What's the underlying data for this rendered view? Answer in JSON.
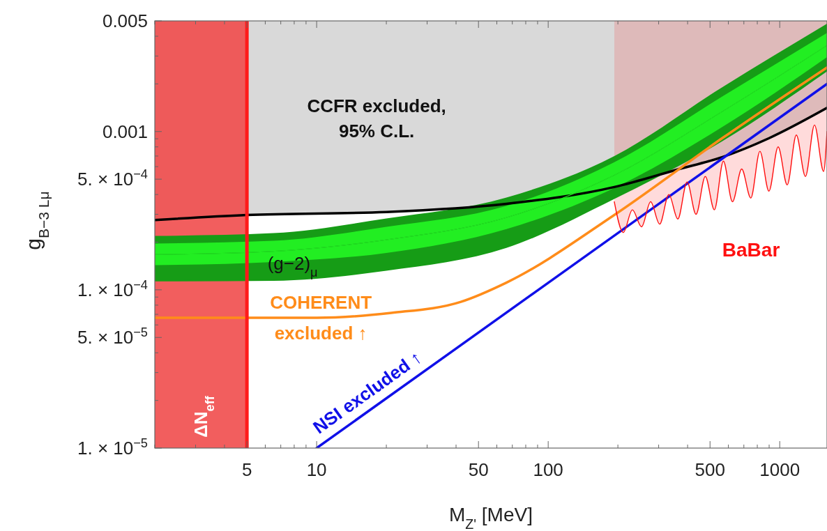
{
  "chart_data": {
    "type": "line",
    "xlabel": "M$_{Z'}$ [MeV]",
    "ylabel": "g$_{B−3 Lμ}$",
    "log": "xy",
    "xlim": [
      2,
      1600
    ],
    "ylim": [
      1e-05,
      0.005
    ],
    "xticks": [
      {
        "value": 2,
        "label": null
      },
      {
        "value": 3,
        "label": null
      },
      {
        "value": 4,
        "label": null
      },
      5,
      {
        "value": 6,
        "label": null
      },
      {
        "value": 7,
        "label": null
      },
      {
        "value": 8,
        "label": null
      },
      {
        "value": 9,
        "label": null
      },
      10,
      {
        "value": 20,
        "label": null
      },
      {
        "value": 30,
        "label": null
      },
      {
        "value": 40,
        "label": null
      },
      50,
      {
        "value": 60,
        "label": null
      },
      {
        "value": 70,
        "label": null
      },
      {
        "value": 80,
        "label": null
      },
      {
        "value": 90,
        "label": null
      },
      100,
      {
        "value": 200,
        "label": null
      },
      {
        "value": 300,
        "label": null
      },
      {
        "value": 400,
        "label": null
      },
      500,
      {
        "value": 600,
        "label": null
      },
      {
        "value": 700,
        "label": null
      },
      {
        "value": 800,
        "label": null
      },
      {
        "value": 900,
        "label": null
      },
      1000
    ],
    "yticks": [
      {
        "value": 1e-05,
        "label": "1. × 10$^{−5}$"
      },
      {
        "value": 2e-05,
        "label": null
      },
      {
        "value": 3e-05,
        "label": null
      },
      {
        "value": 4e-05,
        "label": null
      },
      {
        "value": 5e-05,
        "label": "5. × 10$^{−5}$"
      },
      {
        "value": 6e-05,
        "label": null
      },
      {
        "value": 7e-05,
        "label": null
      },
      {
        "value": 8e-05,
        "label": null
      },
      {
        "value": 9e-05,
        "label": null
      },
      {
        "value": 0.0001,
        "label": "1. × 10$^{−4}$"
      },
      {
        "value": 0.0002,
        "label": null
      },
      {
        "value": 0.0003,
        "label": null
      },
      {
        "value": 0.0004,
        "label": null
      },
      {
        "value": 0.0005,
        "label": "5. × 10$^{−4}$"
      },
      {
        "value": 0.0006,
        "label": null
      },
      {
        "value": 0.0007,
        "label": null
      },
      {
        "value": 0.0008,
        "label": null
      },
      {
        "value": 0.0009,
        "label": null
      },
      0.001,
      {
        "value": 0.002,
        "label": null
      },
      {
        "value": 0.003,
        "label": null
      },
      {
        "value": 0.004,
        "label": null
      },
      0.005
    ],
    "series": [
      {
        "color": "#000000",
        "x": [
          2,
          5,
          20,
          66,
          193,
          360,
          566,
          900,
          1600
        ],
        "values": [
          0.000276,
          0.000297,
          0.00031,
          0.000349,
          0.000446,
          0.000574,
          0.00069,
          0.000908,
          0.00141
        ],
        "lower": [
          0.000276,
          0.000297,
          0.00031,
          0.000349,
          0.000446,
          0.000574,
          0.00069,
          0.000908,
          0.00141
        ],
        "upper": [
          0.005,
          0.005,
          0.005,
          0.005,
          0.005,
          0.005,
          0.005,
          0.005,
          0.005
        ]
      },
      {
        "color": "#169c16",
        "x": [
          2,
          6.5,
          20,
          66,
          193,
          566,
          1600
        ],
        "values": [
          0.000167,
          0.000175,
          0.000207,
          0.000286,
          0.00053,
          0.00134,
          0.0035
        ],
        "lower": [
          0.000113,
          0.000114,
          0.000132,
          0.000184,
          0.000375,
          0.00087,
          0.0024
        ],
        "upper": [
          0.000219,
          0.000228,
          0.000282,
          0.000383,
          0.0007,
          0.00191,
          0.0048
        ]
      },
      {
        "color": "#22ee22",
        "x": [
          2,
          6.5,
          20,
          66,
          193,
          566,
          1600
        ],
        "values": [
          0.000167,
          0.000175,
          0.000207,
          0.000286,
          0.00053,
          0.00134,
          0.0035
        ],
        "lower": [
          0.000143,
          0.00015,
          0.000171,
          0.000242,
          0.00044,
          0.00107,
          0.00295
        ],
        "upper": [
          0.000196,
          0.000204,
          0.00025,
          0.000339,
          0.00064,
          0.00167,
          0.0042
        ]
      },
      {
        "name": "COHERENT excluded ↑",
        "color": "#ff8c1a",
        "x": [
          2,
          10,
          21,
          42,
          66,
          193,
          566,
          1600
        ],
        "values": [
          6.66e-05,
          6.66e-05,
          7.15e-05,
          8.4e-05,
          0.000111,
          0.000297,
          0.00091,
          0.00254
        ]
      },
      {
        "name": "NSI excluded ↑",
        "color": "#1010e8",
        "x": [
          10,
          193,
          1600
        ],
        "values": [
          1e-05,
          0.00022,
          0.002
        ]
      },
      {
        "name": "BaBar",
        "color": "#ff1010",
        "x": [
          193,
          211,
          231,
          253,
          277,
          303,
          332,
          363,
          398,
          435,
          477,
          522,
          571,
          625,
          685,
          750,
          821,
          898,
          984,
          1077,
          1179,
          1291,
          1413,
          1547,
          1600
        ],
        "values": [
          0.00036,
          0.00023,
          0.00032,
          0.00025,
          0.00036,
          0.00026,
          0.0004,
          0.00028,
          0.00048,
          0.0003,
          0.00052,
          0.00032,
          0.00065,
          0.00036,
          0.00058,
          0.00038,
          0.00075,
          0.00042,
          0.0008,
          0.00046,
          0.00095,
          0.00052,
          0.0011,
          0.00056,
          0.001
        ],
        "upper": [
          0.005,
          0.005,
          0.005,
          0.005,
          0.005,
          0.005,
          0.005,
          0.005,
          0.005,
          0.005,
          0.005,
          0.005,
          0.005,
          0.005,
          0.005,
          0.005,
          0.005,
          0.005,
          0.005,
          0.005,
          0.005,
          0.005,
          0.005,
          0.005,
          0.005
        ],
        "lower": [
          0.00036,
          0.00023,
          0.00032,
          0.00025,
          0.00036,
          0.00026,
          0.0004,
          0.00028,
          0.00048,
          0.0003,
          0.00052,
          0.00032,
          0.00065,
          0.00036,
          0.00058,
          0.00038,
          0.00075,
          0.00042,
          0.0008,
          0.00046,
          0.00095,
          0.00052,
          0.0011,
          0.00056,
          0.001
        ]
      }
    ],
    "bands": [
      {
        "axis": "x",
        "from": 2,
        "to": 5,
        "label": "ΔN$_{eff}$",
        "color": "#f04848"
      }
    ],
    "ref_lines": [
      {
        "axis": "x",
        "value": 5,
        "color": "#ff1a1a"
      }
    ],
    "annotations": [
      "CCFR excluded, 95% C.L.",
      "(g−2)$_{μ}$"
    ]
  }
}
